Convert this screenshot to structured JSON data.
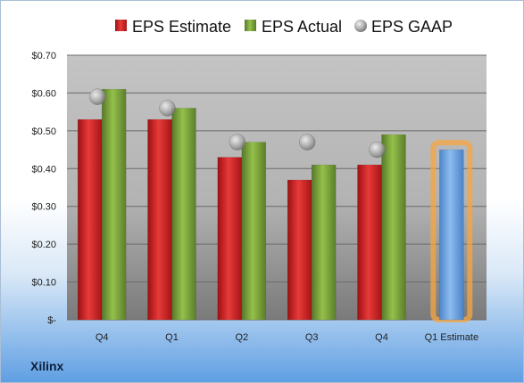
{
  "company": "Xilinx",
  "chart_data": {
    "type": "bar",
    "categories": [
      "Q4",
      "Q1",
      "Q2",
      "Q3",
      "Q4",
      "Q1 Estimate"
    ],
    "series": [
      {
        "name": "EPS Estimate",
        "color": "#d42a2a",
        "values": [
          0.53,
          0.53,
          0.43,
          0.37,
          0.41,
          null
        ]
      },
      {
        "name": "EPS Actual",
        "color": "#7fa53a",
        "values": [
          0.61,
          0.56,
          0.47,
          0.41,
          0.49,
          null
        ]
      },
      {
        "name": "EPS GAAP",
        "color": "#a8a8a8",
        "type": "scatter",
        "values": [
          0.59,
          0.56,
          0.47,
          0.47,
          0.45,
          null
        ]
      },
      {
        "color": "#6ea6e6",
        "values": [
          null,
          null,
          null,
          null,
          null,
          0.45
        ]
      }
    ],
    "y_ticks": [
      "$-",
      "$0.10",
      "$0.20",
      "$0.30",
      "$0.40",
      "$0.50",
      "$0.60",
      "$0.70"
    ],
    "ylim": [
      0,
      0.7
    ],
    "legend": "top",
    "grid": true
  }
}
